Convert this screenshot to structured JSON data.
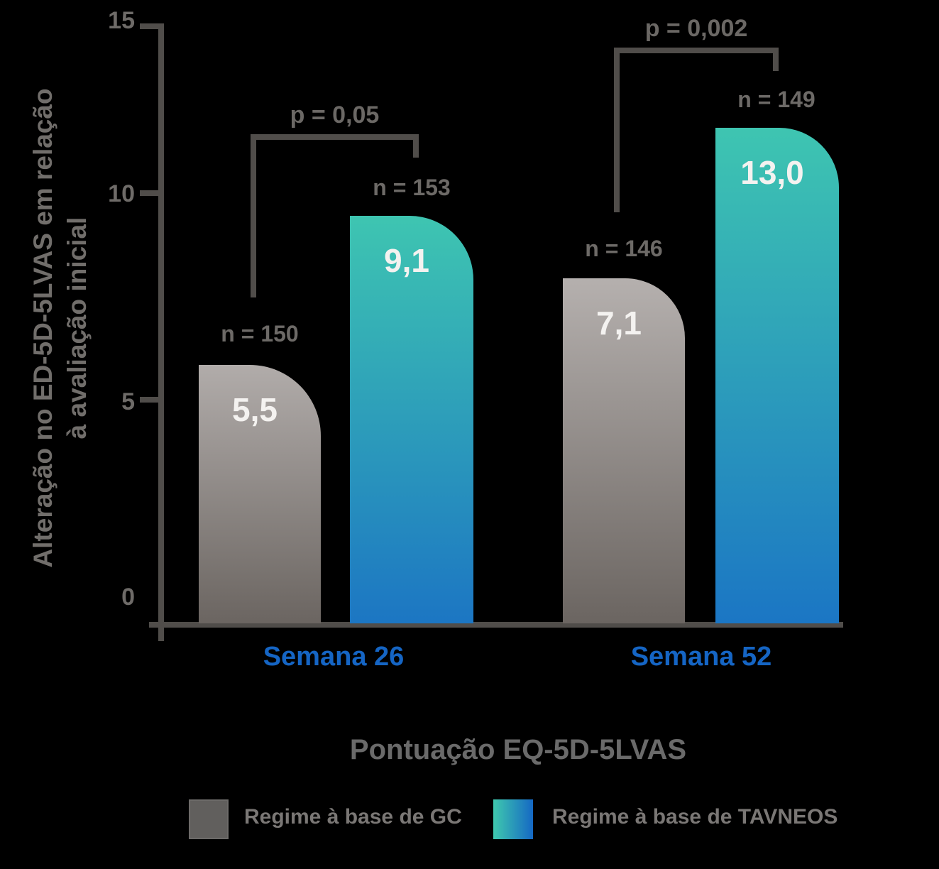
{
  "y_axis": {
    "title_line1": "Alteração no ED-5D-5LVAS em relação",
    "title_line2": "à avaliação inicial",
    "tick_labels": [
      "15",
      "10",
      "5",
      "0"
    ]
  },
  "chart_data": {
    "type": "bar",
    "title": "Pontuação EQ-5D-5LVAS",
    "ylabel": "Alteração no ED-5D-5LVAS em relação à avaliação inicial",
    "categories": [
      "Semana 26",
      "Semana 52"
    ],
    "series": [
      {
        "name": "Regime à base de GC",
        "values": [
          5.5,
          7.1
        ],
        "value_labels": [
          "5,5",
          "7,1"
        ],
        "n": [
          150,
          146
        ],
        "n_labels": [
          "n = 150",
          "n = 146"
        ]
      },
      {
        "name": "Regime à base de TAVNEOS",
        "values": [
          9.1,
          13.0
        ],
        "value_labels": [
          "9,1",
          "13,0"
        ],
        "n": [
          153,
          149
        ],
        "n_labels": [
          "n = 153",
          "n = 149"
        ]
      }
    ],
    "p_values": [
      "p = 0,05",
      "p = 0,002"
    ],
    "ylim": [
      0,
      15
    ],
    "yticks": [
      0,
      5,
      10,
      15
    ],
    "grid": false,
    "legend_position": "bottom"
  },
  "legend": {
    "items": [
      {
        "label": "Regime à base de GC",
        "color": "gray"
      },
      {
        "label": "Regime à base de TAVNEOS",
        "color": "teal-blue-gradient"
      }
    ]
  },
  "colors": {
    "background": "#000000",
    "axis": "#504d4a",
    "tick_label_text": "#6e6b68",
    "n_label_text": "#6d6a67",
    "p_label_text": "#6b6865",
    "bar_value_text": "#f4f2f0",
    "group_label_text": "#1565c4",
    "y_title_text": "#716e6b",
    "chart_title_text": "#6a6a6a",
    "legend_text": "#7a7775",
    "gray_bar_top": "#b1acaa",
    "gray_bar_bottom": "#6b6561",
    "teal_bar_top": "#3ec5b1",
    "teal_bar_bottom": "#1b76c4",
    "legend_gray": "#615f5d",
    "legend_teal_left": "#3fc9ae",
    "legend_teal_right": "#1568c4"
  }
}
